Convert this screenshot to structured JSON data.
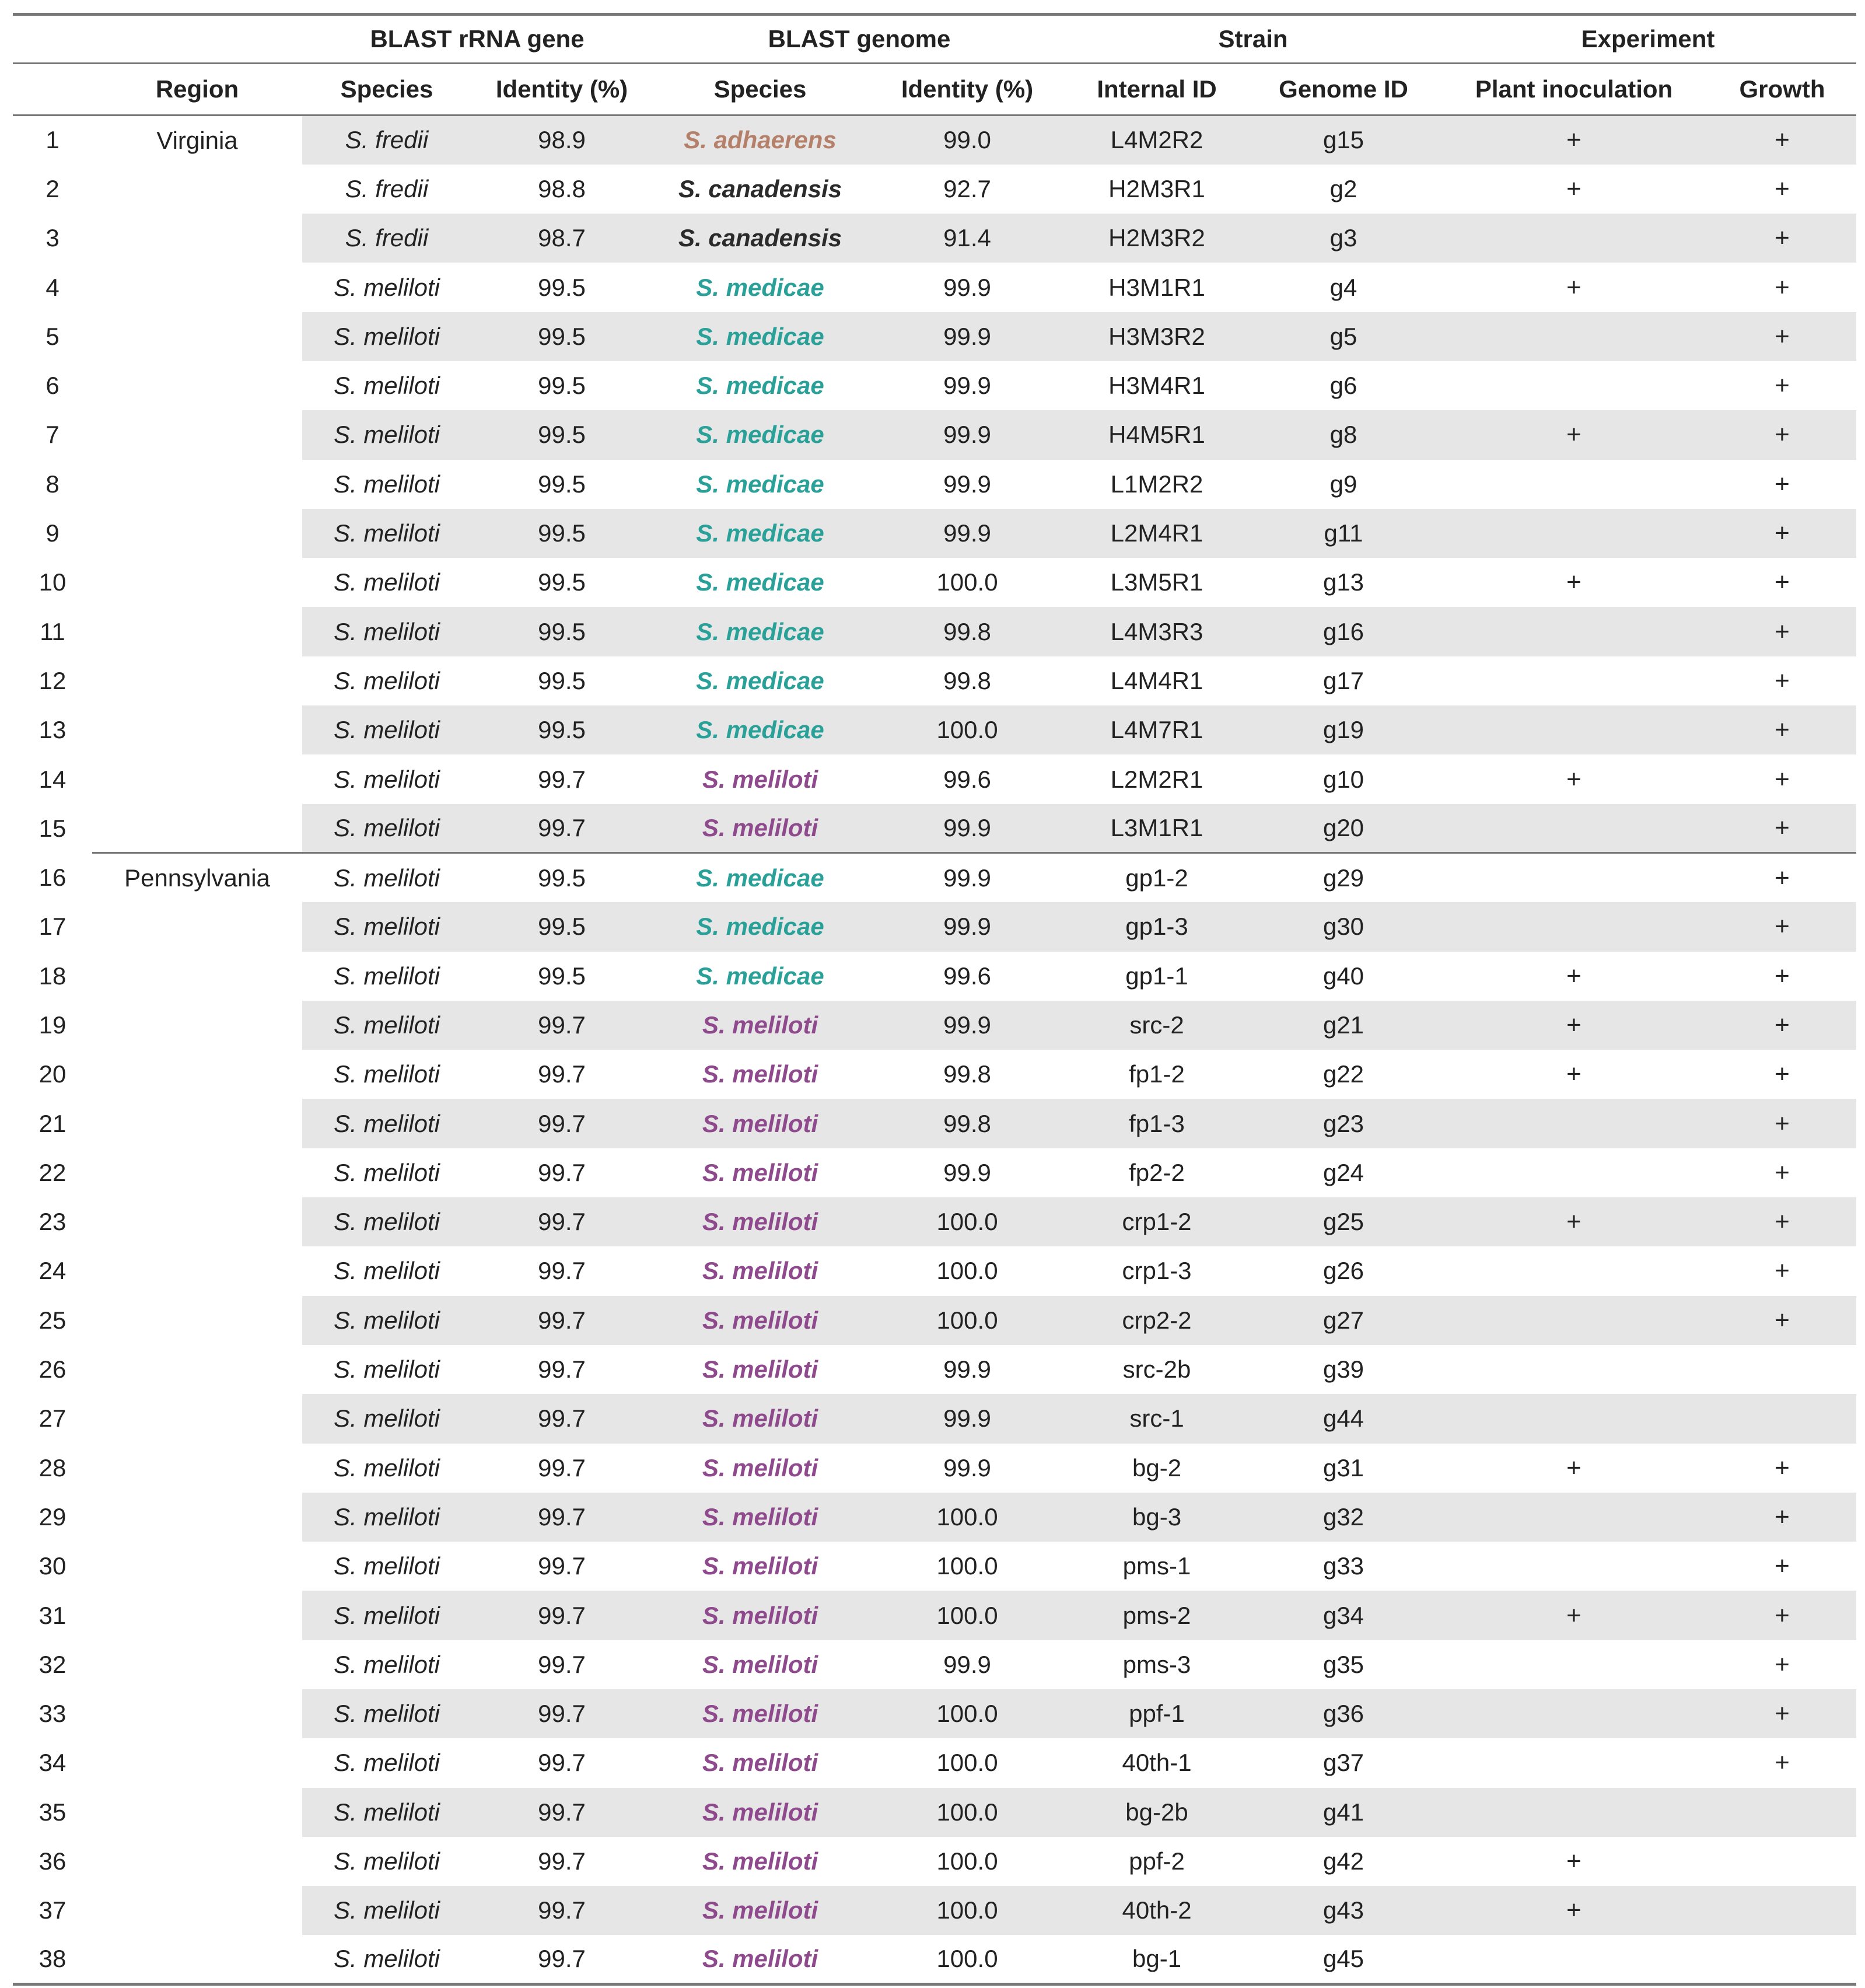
{
  "header": {
    "groups": {
      "rrna": "BLAST rRNA gene",
      "genome": "BLAST genome",
      "strain": "Strain",
      "experiment": "Experiment"
    },
    "columns": {
      "region": "Region",
      "rrna_species": "Species",
      "rrna_identity": "Identity (%)",
      "genome_species": "Species",
      "genome_identity": "Identity (%)",
      "internal_id": "Internal ID",
      "genome_id": "Genome ID",
      "plant_inoculation": "Plant inoculation",
      "growth": "Growth"
    }
  },
  "colors": {
    "S. adhaerens": "#b5806a",
    "S. canadensis": "#2b2b2b",
    "S. medicae": "#2aa198",
    "S. meliloti": "#8e4a8c"
  },
  "regions": [
    {
      "name": "Virginia",
      "start": 0,
      "span": 15
    },
    {
      "name": "Pennsylvania",
      "start": 15,
      "span": 23
    }
  ],
  "rows": [
    {
      "n": "1",
      "rs": "S. fredii",
      "ri": "98.9",
      "gs": "S. adhaerens",
      "gi": "99.0",
      "iid": "L4M2R2",
      "gid": "g15",
      "pi": "+",
      "gr": "+"
    },
    {
      "n": "2",
      "rs": "S. fredii",
      "ri": "98.8",
      "gs": "S. canadensis",
      "gi": "92.7",
      "iid": "H2M3R1",
      "gid": "g2",
      "pi": "+",
      "gr": "+"
    },
    {
      "n": "3",
      "rs": "S. fredii",
      "ri": "98.7",
      "gs": "S. canadensis",
      "gi": "91.4",
      "iid": "H2M3R2",
      "gid": "g3",
      "pi": "",
      "gr": "+"
    },
    {
      "n": "4",
      "rs": "S. meliloti",
      "ri": "99.5",
      "gs": "S. medicae",
      "gi": "99.9",
      "iid": "H3M1R1",
      "gid": "g4",
      "pi": "+",
      "gr": "+"
    },
    {
      "n": "5",
      "rs": "S. meliloti",
      "ri": "99.5",
      "gs": "S. medicae",
      "gi": "99.9",
      "iid": "H3M3R2",
      "gid": "g5",
      "pi": "",
      "gr": "+"
    },
    {
      "n": "6",
      "rs": "S. meliloti",
      "ri": "99.5",
      "gs": "S. medicae",
      "gi": "99.9",
      "iid": "H3M4R1",
      "gid": "g6",
      "pi": "",
      "gr": "+"
    },
    {
      "n": "7",
      "rs": "S. meliloti",
      "ri": "99.5",
      "gs": "S. medicae",
      "gi": "99.9",
      "iid": "H4M5R1",
      "gid": "g8",
      "pi": "+",
      "gr": "+"
    },
    {
      "n": "8",
      "rs": "S. meliloti",
      "ri": "99.5",
      "gs": "S. medicae",
      "gi": "99.9",
      "iid": "L1M2R2",
      "gid": "g9",
      "pi": "",
      "gr": "+"
    },
    {
      "n": "9",
      "rs": "S. meliloti",
      "ri": "99.5",
      "gs": "S. medicae",
      "gi": "99.9",
      "iid": "L2M4R1",
      "gid": "g11",
      "pi": "",
      "gr": "+"
    },
    {
      "n": "10",
      "rs": "S. meliloti",
      "ri": "99.5",
      "gs": "S. medicae",
      "gi": "100.0",
      "iid": "L3M5R1",
      "gid": "g13",
      "pi": "+",
      "gr": "+"
    },
    {
      "n": "11",
      "rs": "S. meliloti",
      "ri": "99.5",
      "gs": "S. medicae",
      "gi": "99.8",
      "iid": "L4M3R3",
      "gid": "g16",
      "pi": "",
      "gr": "+"
    },
    {
      "n": "12",
      "rs": "S. meliloti",
      "ri": "99.5",
      "gs": "S. medicae",
      "gi": "99.8",
      "iid": "L4M4R1",
      "gid": "g17",
      "pi": "",
      "gr": "+"
    },
    {
      "n": "13",
      "rs": "S. meliloti",
      "ri": "99.5",
      "gs": "S. medicae",
      "gi": "100.0",
      "iid": "L4M7R1",
      "gid": "g19",
      "pi": "",
      "gr": "+"
    },
    {
      "n": "14",
      "rs": "S. meliloti",
      "ri": "99.7",
      "gs": "S. meliloti",
      "gi": "99.6",
      "iid": "L2M2R1",
      "gid": "g10",
      "pi": "+",
      "gr": "+"
    },
    {
      "n": "15",
      "rs": "S. meliloti",
      "ri": "99.7",
      "gs": "S. meliloti",
      "gi": "99.9",
      "iid": "L3M1R1",
      "gid": "g20",
      "pi": "",
      "gr": "+"
    },
    {
      "n": "16",
      "rs": "S. meliloti",
      "ri": "99.5",
      "gs": "S. medicae",
      "gi": "99.9",
      "iid": "gp1-2",
      "gid": "g29",
      "pi": "",
      "gr": "+"
    },
    {
      "n": "17",
      "rs": "S. meliloti",
      "ri": "99.5",
      "gs": "S. medicae",
      "gi": "99.9",
      "iid": "gp1-3",
      "gid": "g30",
      "pi": "",
      "gr": "+"
    },
    {
      "n": "18",
      "rs": "S. meliloti",
      "ri": "99.5",
      "gs": "S. medicae",
      "gi": "99.6",
      "iid": "gp1-1",
      "gid": "g40",
      "pi": "+",
      "gr": "+"
    },
    {
      "n": "19",
      "rs": "S. meliloti",
      "ri": "99.7",
      "gs": "S. meliloti",
      "gi": "99.9",
      "iid": "src-2",
      "gid": "g21",
      "pi": "+",
      "gr": "+"
    },
    {
      "n": "20",
      "rs": "S. meliloti",
      "ri": "99.7",
      "gs": "S. meliloti",
      "gi": "99.8",
      "iid": "fp1-2",
      "gid": "g22",
      "pi": "+",
      "gr": "+"
    },
    {
      "n": "21",
      "rs": "S. meliloti",
      "ri": "99.7",
      "gs": "S. meliloti",
      "gi": "99.8",
      "iid": "fp1-3",
      "gid": "g23",
      "pi": "",
      "gr": "+"
    },
    {
      "n": "22",
      "rs": "S. meliloti",
      "ri": "99.7",
      "gs": "S. meliloti",
      "gi": "99.9",
      "iid": "fp2-2",
      "gid": "g24",
      "pi": "",
      "gr": "+"
    },
    {
      "n": "23",
      "rs": "S. meliloti",
      "ri": "99.7",
      "gs": "S. meliloti",
      "gi": "100.0",
      "iid": "crp1-2",
      "gid": "g25",
      "pi": "+",
      "gr": "+"
    },
    {
      "n": "24",
      "rs": "S. meliloti",
      "ri": "99.7",
      "gs": "S. meliloti",
      "gi": "100.0",
      "iid": "crp1-3",
      "gid": "g26",
      "pi": "",
      "gr": "+"
    },
    {
      "n": "25",
      "rs": "S. meliloti",
      "ri": "99.7",
      "gs": "S. meliloti",
      "gi": "100.0",
      "iid": "crp2-2",
      "gid": "g27",
      "pi": "",
      "gr": "+"
    },
    {
      "n": "26",
      "rs": "S. meliloti",
      "ri": "99.7",
      "gs": "S. meliloti",
      "gi": "99.9",
      "iid": "src-2b",
      "gid": "g39",
      "pi": "",
      "gr": ""
    },
    {
      "n": "27",
      "rs": "S. meliloti",
      "ri": "99.7",
      "gs": "S. meliloti",
      "gi": "99.9",
      "iid": "src-1",
      "gid": "g44",
      "pi": "",
      "gr": ""
    },
    {
      "n": "28",
      "rs": "S. meliloti",
      "ri": "99.7",
      "gs": "S. meliloti",
      "gi": "99.9",
      "iid": "bg-2",
      "gid": "g31",
      "pi": "+",
      "gr": "+"
    },
    {
      "n": "29",
      "rs": "S. meliloti",
      "ri": "99.7",
      "gs": "S. meliloti",
      "gi": "100.0",
      "iid": "bg-3",
      "gid": "g32",
      "pi": "",
      "gr": "+"
    },
    {
      "n": "30",
      "rs": "S. meliloti",
      "ri": "99.7",
      "gs": "S. meliloti",
      "gi": "100.0",
      "iid": "pms-1",
      "gid": "g33",
      "pi": "",
      "gr": "+"
    },
    {
      "n": "31",
      "rs": "S. meliloti",
      "ri": "99.7",
      "gs": "S. meliloti",
      "gi": "100.0",
      "iid": "pms-2",
      "gid": "g34",
      "pi": "+",
      "gr": "+"
    },
    {
      "n": "32",
      "rs": "S. meliloti",
      "ri": "99.7",
      "gs": "S. meliloti",
      "gi": "99.9",
      "iid": "pms-3",
      "gid": "g35",
      "pi": "",
      "gr": "+"
    },
    {
      "n": "33",
      "rs": "S. meliloti",
      "ri": "99.7",
      "gs": "S. meliloti",
      "gi": "100.0",
      "iid": "ppf-1",
      "gid": "g36",
      "pi": "",
      "gr": "+"
    },
    {
      "n": "34",
      "rs": "S. meliloti",
      "ri": "99.7",
      "gs": "S. meliloti",
      "gi": "100.0",
      "iid": "40th-1",
      "gid": "g37",
      "pi": "",
      "gr": "+"
    },
    {
      "n": "35",
      "rs": "S. meliloti",
      "ri": "99.7",
      "gs": "S. meliloti",
      "gi": "100.0",
      "iid": "bg-2b",
      "gid": "g41",
      "pi": "",
      "gr": ""
    },
    {
      "n": "36",
      "rs": "S. meliloti",
      "ri": "99.7",
      "gs": "S. meliloti",
      "gi": "100.0",
      "iid": "ppf-2",
      "gid": "g42",
      "pi": "+",
      "gr": ""
    },
    {
      "n": "37",
      "rs": "S. meliloti",
      "ri": "99.7",
      "gs": "S. meliloti",
      "gi": "100.0",
      "iid": "40th-2",
      "gid": "g43",
      "pi": "+",
      "gr": ""
    },
    {
      "n": "38",
      "rs": "S. meliloti",
      "ri": "99.7",
      "gs": "S. meliloti",
      "gi": "100.0",
      "iid": "bg-1",
      "gid": "g45",
      "pi": "",
      "gr": ""
    }
  ]
}
